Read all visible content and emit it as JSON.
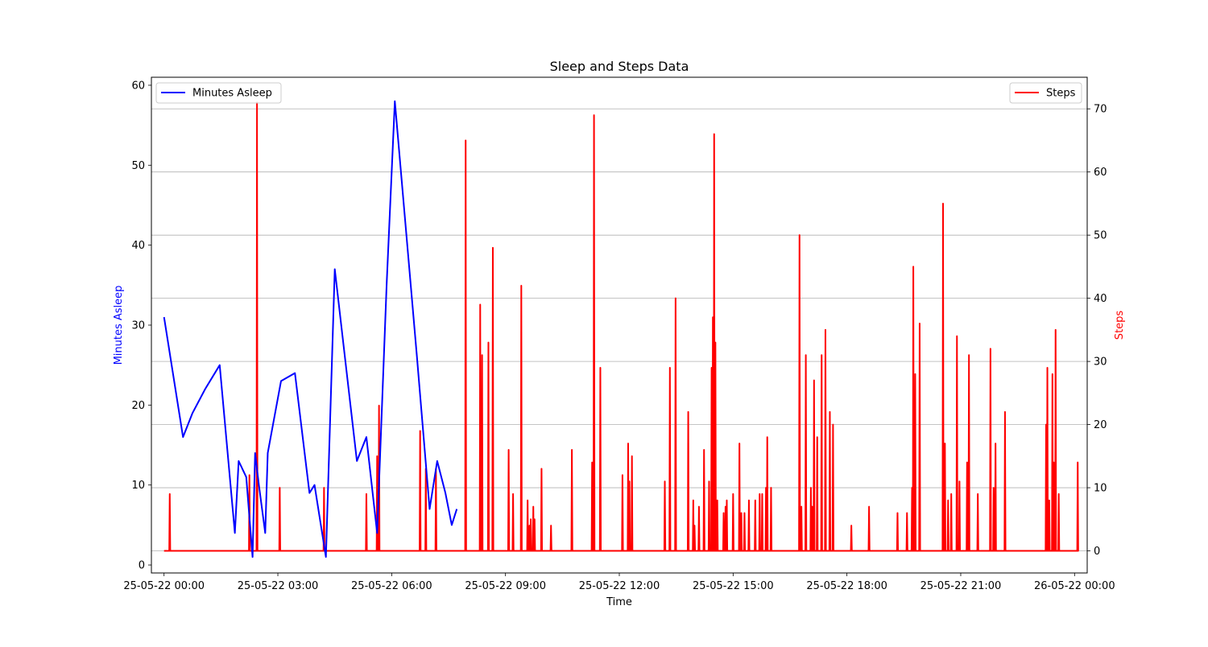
{
  "chart_data": {
    "type": "line",
    "title": "Sleep and Steps Data",
    "xlabel": "Time",
    "ylabel_left": "Minutes Asleep",
    "ylabel_right": "Steps",
    "xlim": [
      -20,
      1460
    ],
    "x_ticks": [
      {
        "x": 0,
        "label": "25-05-22 00:00"
      },
      {
        "x": 180,
        "label": "25-05-22 03:00"
      },
      {
        "x": 360,
        "label": "25-05-22 06:00"
      },
      {
        "x": 540,
        "label": "25-05-22 09:00"
      },
      {
        "x": 720,
        "label": "25-05-22 12:00"
      },
      {
        "x": 900,
        "label": "25-05-22 15:00"
      },
      {
        "x": 1080,
        "label": "25-05-22 18:00"
      },
      {
        "x": 1260,
        "label": "25-05-22 21:00"
      },
      {
        "x": 1440,
        "label": "26-05-22 00:00"
      }
    ],
    "y_left": {
      "lim": [
        -1,
        61
      ],
      "ticks": [
        0,
        10,
        20,
        30,
        40,
        50,
        60
      ]
    },
    "y_right": {
      "lim": [
        -3.5,
        75
      ],
      "ticks": [
        0,
        10,
        20,
        30,
        40,
        50,
        60,
        70
      ]
    },
    "grid": "right-axis horizontal gridlines",
    "series": [
      {
        "name": "Minutes Asleep",
        "axis": "left",
        "color": "#0000ff",
        "legend": "top-left",
        "points": [
          [
            0,
            31
          ],
          [
            30,
            16
          ],
          [
            45,
            19
          ],
          [
            65,
            22
          ],
          [
            88,
            25
          ],
          [
            112,
            4
          ],
          [
            118,
            13
          ],
          [
            130,
            11
          ],
          [
            140,
            1
          ],
          [
            144,
            14
          ],
          [
            150,
            10
          ],
          [
            160,
            4
          ],
          [
            164,
            14
          ],
          [
            185,
            23
          ],
          [
            207,
            24
          ],
          [
            230,
            9
          ],
          [
            238,
            10
          ],
          [
            250,
            4
          ],
          [
            256,
            1
          ],
          [
            270,
            37
          ],
          [
            305,
            13
          ],
          [
            320,
            16
          ],
          [
            337,
            4
          ],
          [
            352,
            35
          ],
          [
            365,
            58
          ],
          [
            400,
            26
          ],
          [
            420,
            7
          ],
          [
            432,
            13
          ],
          [
            445,
            9
          ],
          [
            455,
            5
          ],
          [
            463,
            7
          ]
        ]
      },
      {
        "name": "Steps",
        "axis": "right",
        "color": "#ff0000",
        "legend": "top-right",
        "spikes": [
          [
            9,
            9
          ],
          [
            135,
            12
          ],
          [
            147,
            71
          ],
          [
            183,
            10
          ],
          [
            253,
            10
          ],
          [
            320,
            9
          ],
          [
            337,
            15
          ],
          [
            340,
            23
          ],
          [
            405,
            19
          ],
          [
            414,
            13
          ],
          [
            430,
            13
          ],
          [
            477,
            65
          ],
          [
            500,
            39
          ],
          [
            503,
            31
          ],
          [
            513,
            33
          ],
          [
            520,
            48
          ],
          [
            545,
            16
          ],
          [
            552,
            9
          ],
          [
            565,
            42
          ],
          [
            575,
            8
          ],
          [
            578,
            4
          ],
          [
            580,
            5
          ],
          [
            584,
            7
          ],
          [
            586,
            5
          ],
          [
            597,
            13
          ],
          [
            612,
            4
          ],
          [
            645,
            16
          ],
          [
            677,
            14
          ],
          [
            680,
            69
          ],
          [
            690,
            29
          ],
          [
            725,
            12
          ],
          [
            734,
            17
          ],
          [
            736,
            11
          ],
          [
            740,
            15
          ],
          [
            792,
            11
          ],
          [
            800,
            29
          ],
          [
            809,
            40
          ],
          [
            829,
            22
          ],
          [
            837,
            8
          ],
          [
            839,
            4
          ],
          [
            846,
            7
          ],
          [
            854,
            16
          ],
          [
            862,
            11
          ],
          [
            866,
            29
          ],
          [
            868,
            37
          ],
          [
            870,
            66
          ],
          [
            872,
            33
          ],
          [
            875,
            8
          ],
          [
            885,
            6
          ],
          [
            888,
            7
          ],
          [
            890,
            8
          ],
          [
            900,
            9
          ],
          [
            910,
            17
          ],
          [
            913,
            6
          ],
          [
            918,
            6
          ],
          [
            925,
            8
          ],
          [
            935,
            8
          ],
          [
            942,
            9
          ],
          [
            946,
            9
          ],
          [
            952,
            10
          ],
          [
            954,
            18
          ],
          [
            960,
            10
          ],
          [
            1005,
            50
          ],
          [
            1008,
            7
          ],
          [
            1015,
            31
          ],
          [
            1023,
            10
          ],
          [
            1025,
            7
          ],
          [
            1028,
            27
          ],
          [
            1033,
            18
          ],
          [
            1040,
            31
          ],
          [
            1046,
            35
          ],
          [
            1053,
            22
          ],
          [
            1058,
            20
          ],
          [
            1087,
            4
          ],
          [
            1115,
            7
          ],
          [
            1160,
            6
          ],
          [
            1175,
            6
          ],
          [
            1183,
            10
          ],
          [
            1185,
            45
          ],
          [
            1188,
            28
          ],
          [
            1195,
            36
          ],
          [
            1232,
            55
          ],
          [
            1235,
            17
          ],
          [
            1240,
            8
          ],
          [
            1245,
            9
          ],
          [
            1254,
            34
          ],
          [
            1258,
            11
          ],
          [
            1270,
            14
          ],
          [
            1273,
            31
          ],
          [
            1287,
            9
          ],
          [
            1307,
            32
          ],
          [
            1312,
            10
          ],
          [
            1315,
            17
          ],
          [
            1330,
            22
          ],
          [
            1395,
            20
          ],
          [
            1397,
            29
          ],
          [
            1400,
            8
          ],
          [
            1405,
            28
          ],
          [
            1407,
            14
          ],
          [
            1410,
            35
          ],
          [
            1415,
            9
          ],
          [
            1445,
            14
          ]
        ],
        "x_end": 1440
      }
    ]
  }
}
